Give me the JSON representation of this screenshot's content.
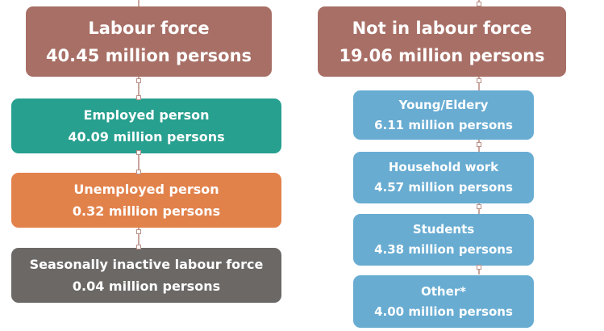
{
  "left": {
    "title": "Labour force",
    "value": "40.45 million persons",
    "items": [
      {
        "label": "Employed person",
        "value": "40.09 million persons"
      },
      {
        "label": "Unemployed person",
        "value": "0.32 million persons"
      },
      {
        "label": "Seasonally inactive labour force",
        "value": "0.04 million persons"
      }
    ]
  },
  "right": {
    "title": "Not in labour force",
    "value": "19.06 million persons",
    "items": [
      {
        "label": "Young/Eldery",
        "value": "6.11 million persons"
      },
      {
        "label": "Household work",
        "value": "4.57 million persons"
      },
      {
        "label": "Students",
        "value": "4.38 million persons"
      },
      {
        "label": "Other*",
        "value": "4.00 million persons"
      }
    ]
  }
}
